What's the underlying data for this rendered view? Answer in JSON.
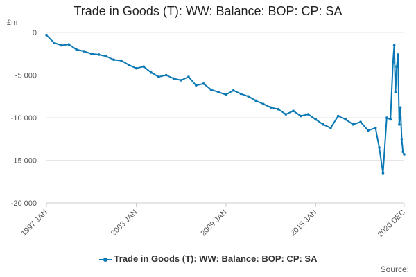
{
  "title": "Trade in Goods (T): WW: Balance: BOP: CP: SA",
  "source_label": "Source:",
  "colors": {
    "series": "#0a78b4",
    "grid": "#e6e6e6",
    "axis": "#cccccc"
  },
  "chart_data": {
    "type": "line",
    "title": "Trade in Goods (T): WW: Balance: BOP: CP: SA",
    "unit_label": "£m",
    "ylim": [
      -20000,
      0
    ],
    "y_ticks": [
      0,
      -5000,
      -10000,
      -15000,
      -20000
    ],
    "y_tick_labels": [
      "0",
      "-5 000",
      "-10 000",
      "-15 000",
      "-20 000"
    ],
    "x_ticks": [
      "1997 JAN",
      "2003 JAN",
      "2009 JAN",
      "2015 JAN",
      "2020 DEC"
    ],
    "x_range": [
      "1997 JAN",
      "2020 DEC"
    ],
    "grid": true,
    "legend_position": "bottom",
    "series": [
      {
        "name": "Trade in Goods (T): WW: Balance: BOP: CP: SA",
        "x": [
          "1997 JAN",
          "1997 JUL",
          "1998 JAN",
          "1998 JUL",
          "1999 JAN",
          "1999 JUL",
          "2000 JAN",
          "2000 JUL",
          "2001 JAN",
          "2001 JUL",
          "2002 JAN",
          "2002 JUL",
          "2003 JAN",
          "2003 JUL",
          "2004 JAN",
          "2004 JUL",
          "2005 JAN",
          "2005 JUL",
          "2006 JAN",
          "2006 JUL",
          "2007 JAN",
          "2007 JUL",
          "2008 JAN",
          "2008 JUL",
          "2009 JAN",
          "2009 JUL",
          "2010 JAN",
          "2010 JUL",
          "2011 JAN",
          "2011 JUL",
          "2012 JAN",
          "2012 JUL",
          "2013 JAN",
          "2013 JUL",
          "2014 JAN",
          "2014 JUL",
          "2015 JAN",
          "2015 JUL",
          "2016 JAN",
          "2016 JUL",
          "2017 JAN",
          "2017 JUL",
          "2018 JAN",
          "2018 JUL",
          "2019 JAN",
          "2019 APR",
          "2019 JUL",
          "2019 OCT",
          "2020 JAN",
          "2020 MAR",
          "2020 APR",
          "2020 MAY",
          "2020 JUN",
          "2020 JUL",
          "2020 AUG",
          "2020 SEP",
          "2020 OCT",
          "2020 NOV",
          "2020 DEC"
        ],
        "values": [
          -300,
          -1200,
          -1500,
          -1400,
          -2000,
          -2200,
          -2500,
          -2600,
          -2800,
          -3200,
          -3300,
          -3800,
          -4200,
          -4000,
          -4700,
          -5200,
          -5000,
          -5400,
          -5600,
          -5200,
          -6200,
          -6000,
          -6700,
          -7000,
          -7300,
          -6800,
          -7200,
          -7500,
          -8000,
          -8400,
          -8800,
          -9000,
          -9600,
          -9200,
          -9800,
          -9600,
          -10200,
          -10800,
          -11200,
          -9800,
          -10200,
          -10800,
          -10500,
          -11500,
          -11200,
          -13500,
          -16500,
          -10000,
          -10200,
          -3500,
          -1500,
          -7000,
          -4000,
          -2600,
          -10800,
          -8800,
          -12500,
          -14000,
          -14300
        ]
      }
    ]
  }
}
